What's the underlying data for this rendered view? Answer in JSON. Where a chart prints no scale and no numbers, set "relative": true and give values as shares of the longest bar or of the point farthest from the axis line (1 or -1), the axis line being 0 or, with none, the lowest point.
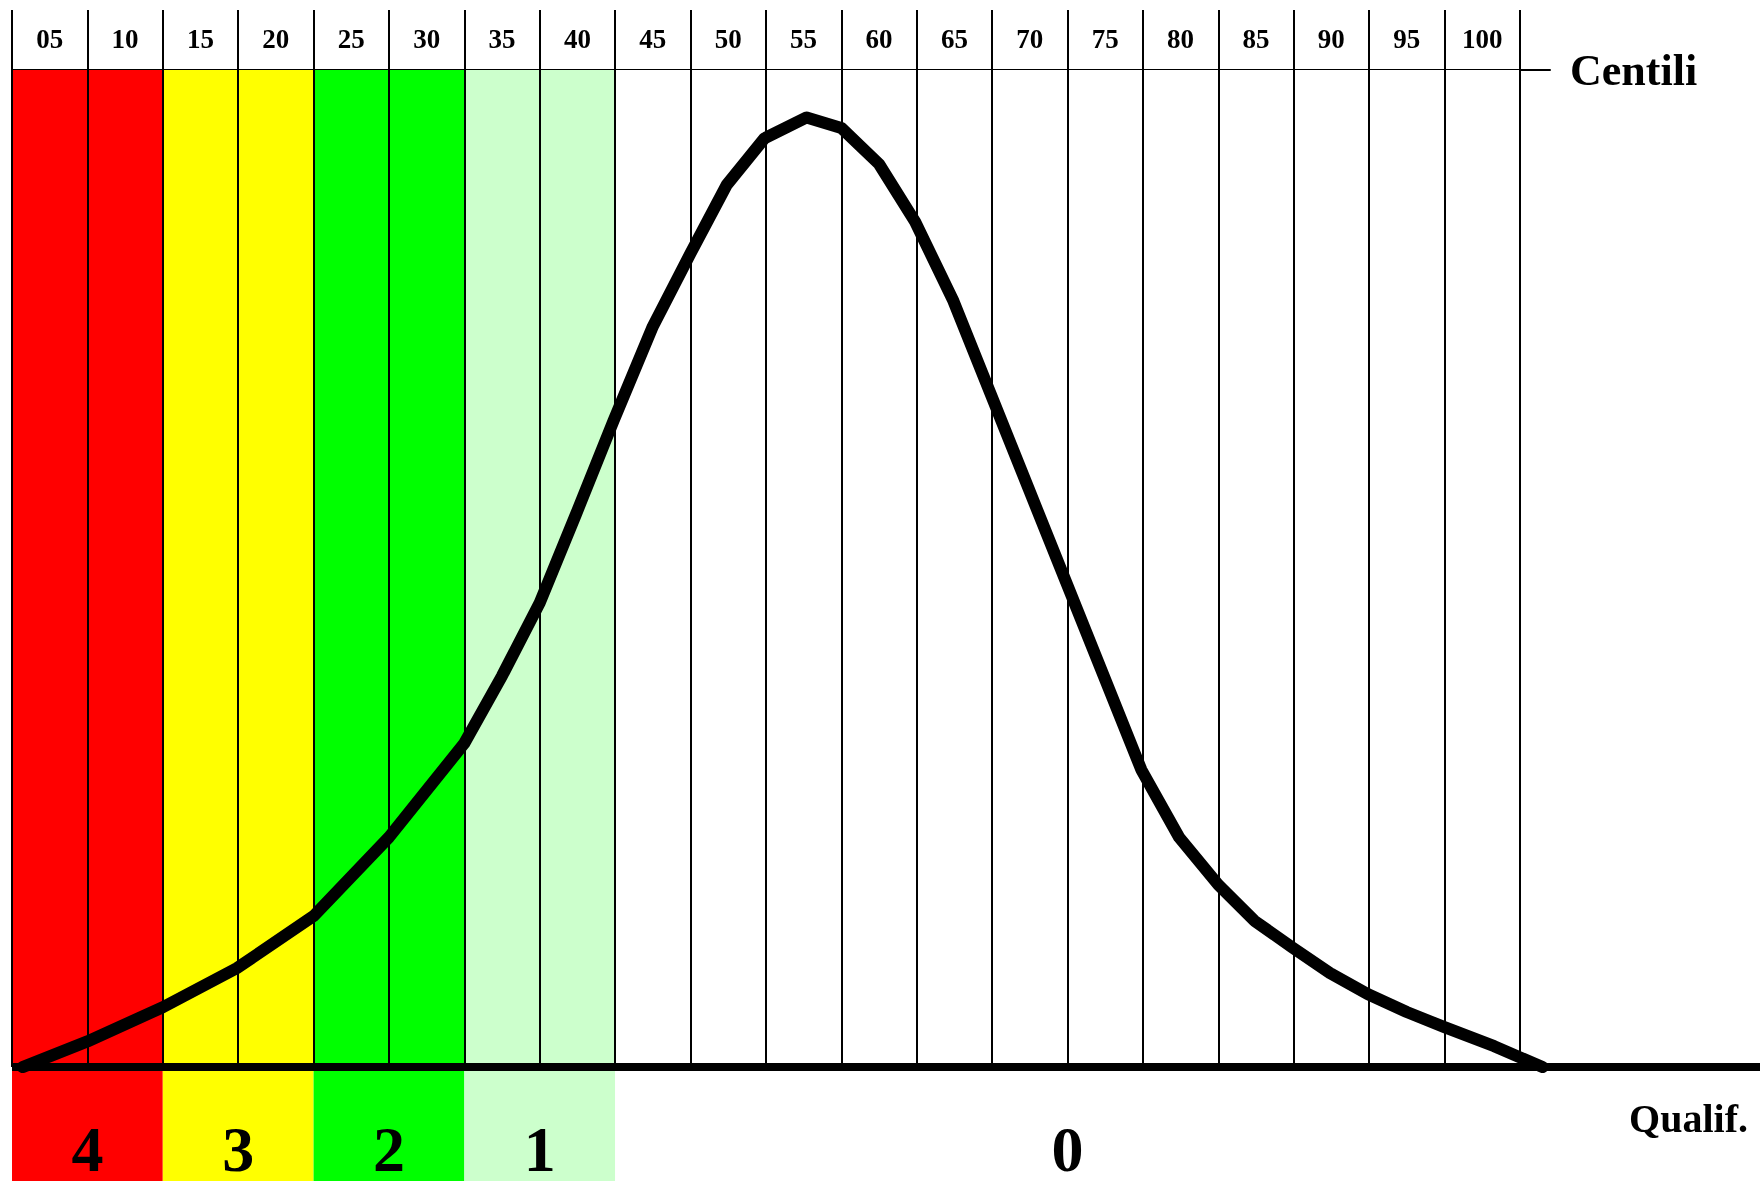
{
  "chart_data": {
    "type": "line",
    "relative": true,
    "xlabel": "Centili",
    "annotations": [
      "Qualif."
    ],
    "xlim": [
      2.5,
      104.5
    ],
    "xticks": [
      {
        "value": 2.5,
        "label": null
      },
      {
        "value": 5,
        "label": "05"
      },
      {
        "value": 7.5,
        "label": null
      },
      {
        "value": 10,
        "label": "10"
      },
      {
        "value": 12.5,
        "label": null
      },
      {
        "value": 15,
        "label": "15"
      },
      {
        "value": 17.5,
        "label": null
      },
      {
        "value": 20,
        "label": "20"
      },
      {
        "value": 22.5,
        "label": null
      },
      {
        "value": 25,
        "label": "25"
      },
      {
        "value": 27.5,
        "label": null
      },
      {
        "value": 30,
        "label": "30"
      },
      {
        "value": 32.5,
        "label": null
      },
      {
        "value": 35,
        "label": "35"
      },
      {
        "value": 37.5,
        "label": null
      },
      {
        "value": 40,
        "label": "40"
      },
      {
        "value": 42.5,
        "label": null
      },
      {
        "value": 45,
        "label": "45"
      },
      {
        "value": 47.5,
        "label": null
      },
      {
        "value": 50,
        "label": "50"
      },
      {
        "value": 52.5,
        "label": null
      },
      {
        "value": 55,
        "label": "55"
      },
      {
        "value": 57.5,
        "label": null
      },
      {
        "value": 60,
        "label": "60"
      },
      {
        "value": 62.5,
        "label": null
      },
      {
        "value": 65,
        "label": "65"
      },
      {
        "value": 67.5,
        "label": null
      },
      {
        "value": 70,
        "label": "70"
      },
      {
        "value": 72.5,
        "label": null
      },
      {
        "value": 75,
        "label": "75"
      },
      {
        "value": 77.5,
        "label": null
      },
      {
        "value": 80,
        "label": "80"
      },
      {
        "value": 82.5,
        "label": null
      },
      {
        "value": 85,
        "label": "85"
      },
      {
        "value": 87.5,
        "label": null
      },
      {
        "value": 90,
        "label": "90"
      },
      {
        "value": 92.5,
        "label": null
      },
      {
        "value": 95,
        "label": "95"
      },
      {
        "value": 97.5,
        "label": null
      },
      {
        "value": 100,
        "label": "100"
      },
      {
        "value": 102.5,
        "label": null
      }
    ],
    "grid": "x",
    "line_style": "solid",
    "x": [
      3.2,
      7.5,
      12.5,
      17.4,
      22.5,
      27.5,
      32.5,
      35,
      37.5,
      39.9,
      42.4,
      45,
      47.5,
      49.9,
      52.4,
      55.2,
      57.5,
      60,
      62.4,
      64.9,
      67.4,
      69.9,
      72.4,
      74.9,
      77.4,
      79.9,
      82.5,
      84.9,
      87.4,
      89.9,
      92.4,
      95,
      97.5,
      100.8,
      104
    ],
    "series": [
      {
        "color": "#000000",
        "values": [
          0,
          0.027,
          0.063,
          0.104,
          0.159,
          0.242,
          0.341,
          0.412,
          0.489,
          0.582,
          0.681,
          0.78,
          0.857,
          0.929,
          0.978,
          1,
          0.989,
          0.951,
          0.89,
          0.808,
          0.709,
          0.61,
          0.511,
          0.412,
          0.313,
          0.242,
          0.192,
          0.154,
          0.126,
          0.099,
          0.077,
          0.058,
          0.042,
          0.022,
          0
        ]
      }
    ],
    "bands": [
      {
        "axis": "x",
        "from": 2.5,
        "to": 12.5,
        "label": "4",
        "color": "#ff0000"
      },
      {
        "axis": "x",
        "from": 12.5,
        "to": 22.5,
        "label": "3",
        "color": "#ffff00"
      },
      {
        "axis": "x",
        "from": 22.5,
        "to": 32.5,
        "label": "2",
        "color": "#00ff00"
      },
      {
        "axis": "x",
        "from": 32.5,
        "to": 42.5,
        "label": "1",
        "color": "#ccffcc"
      },
      {
        "axis": "x",
        "from": 42.5,
        "to": 102.5,
        "label": "0",
        "color": "#ffffff"
      }
    ]
  }
}
